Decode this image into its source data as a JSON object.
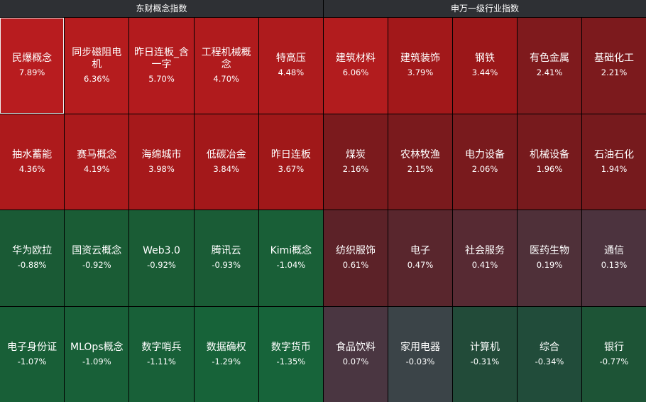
{
  "left_panel": {
    "title": "东财概念指数",
    "tiles": [
      {
        "name": "民爆概念",
        "pct": "7.89%",
        "color": "#b81c1f",
        "selected": true
      },
      {
        "name": "同步磁阻电机",
        "pct": "6.36%",
        "color": "#b51c1e"
      },
      {
        "name": "昨日连板_含一字",
        "pct": "5.70%",
        "color": "#b31b1e"
      },
      {
        "name": "工程机械概念",
        "pct": "4.70%",
        "color": "#b01b1d"
      },
      {
        "name": "特高压",
        "pct": "4.48%",
        "color": "#ae1b1d"
      },
      {
        "name": "抽水蓄能",
        "pct": "4.36%",
        "color": "#ad1a1c"
      },
      {
        "name": "赛马概念",
        "pct": "4.19%",
        "color": "#ab1a1c"
      },
      {
        "name": "海绵城市",
        "pct": "3.98%",
        "color": "#a6191b"
      },
      {
        "name": "低碳冶金",
        "pct": "3.84%",
        "color": "#a3181a"
      },
      {
        "name": "昨日连板",
        "pct": "3.67%",
        "color": "#a01819"
      },
      {
        "name": "华为欧拉",
        "pct": "-0.88%",
        "color": "#1a5a35"
      },
      {
        "name": "国资云概念",
        "pct": "-0.92%",
        "color": "#1a5c35"
      },
      {
        "name": "Web3.0",
        "pct": "-0.92%",
        "color": "#1a5c35"
      },
      {
        "name": "腾讯云",
        "pct": "-0.93%",
        "color": "#1a5c36"
      },
      {
        "name": "Kimi概念",
        "pct": "-1.04%",
        "color": "#195f37"
      },
      {
        "name": "电子身份证",
        "pct": "-1.07%",
        "color": "#185f37"
      },
      {
        "name": "MLOps概念",
        "pct": "-1.09%",
        "color": "#186038"
      },
      {
        "name": "数字哨兵",
        "pct": "-1.11%",
        "color": "#186038"
      },
      {
        "name": "数据确权",
        "pct": "-1.29%",
        "color": "#176339"
      },
      {
        "name": "数字货币",
        "pct": "-1.35%",
        "color": "#17643a"
      }
    ]
  },
  "right_panel": {
    "title": "申万一级行业指数",
    "tiles": [
      {
        "name": "建筑材料",
        "pct": "6.06%",
        "color": "#b21c1e"
      },
      {
        "name": "建筑装饰",
        "pct": "3.79%",
        "color": "#a2181a"
      },
      {
        "name": "钢铁",
        "pct": "3.44%",
        "color": "#9b1719"
      },
      {
        "name": "有色金属",
        "pct": "2.41%",
        "color": "#7f1a1d"
      },
      {
        "name": "基础化工",
        "pct": "2.21%",
        "color": "#7c1a1d"
      },
      {
        "name": "煤炭",
        "pct": "2.16%",
        "color": "#7b1a1d"
      },
      {
        "name": "农林牧渔",
        "pct": "2.15%",
        "color": "#7a1a1d"
      },
      {
        "name": "电力设备",
        "pct": "2.06%",
        "color": "#791a1d"
      },
      {
        "name": "机械设备",
        "pct": "1.96%",
        "color": "#771a1d"
      },
      {
        "name": "石油石化",
        "pct": "1.94%",
        "color": "#761a1d"
      },
      {
        "name": "纺织服饰",
        "pct": "0.61%",
        "color": "#5c2228"
      },
      {
        "name": "电子",
        "pct": "0.47%",
        "color": "#59262d"
      },
      {
        "name": "社会服务",
        "pct": "0.41%",
        "color": "#572a33"
      },
      {
        "name": "医药生物",
        "pct": "0.19%",
        "color": "#4f3039"
      },
      {
        "name": "通信",
        "pct": "0.13%",
        "color": "#4c333e"
      },
      {
        "name": "食品饮料",
        "pct": "0.07%",
        "color": "#4a3641"
      },
      {
        "name": "家用电器",
        "pct": "-0.03%",
        "color": "#3b4448"
      },
      {
        "name": "计算机",
        "pct": "-0.31%",
        "color": "#224b39"
      },
      {
        "name": "综合",
        "pct": "-0.34%",
        "color": "#214c3a"
      },
      {
        "name": "银行",
        "pct": "-0.77%",
        "color": "#1d5436"
      }
    ]
  }
}
